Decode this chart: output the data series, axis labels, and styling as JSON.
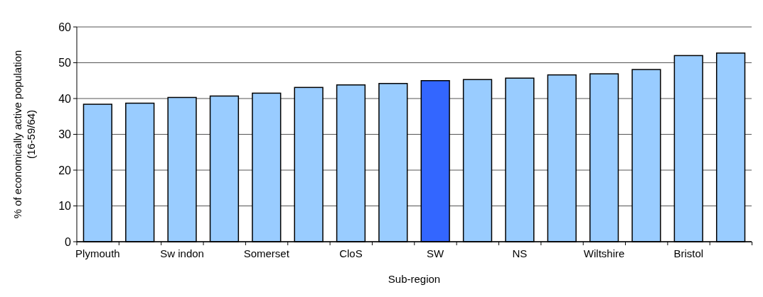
{
  "chart_data": {
    "type": "bar",
    "xlabel": "Sub-region",
    "ylabel": "% of economically active population (16-59/64)",
    "categories": [
      "Plymouth",
      null,
      "Sw indon",
      null,
      "Somerset",
      null,
      "CloS",
      null,
      "SW",
      null,
      "NS",
      null,
      "Wiltshire",
      null,
      "Bristol",
      null
    ],
    "values": [
      38.4,
      38.7,
      40.3,
      40.7,
      41.5,
      43.1,
      43.8,
      44.2,
      45.0,
      45.3,
      45.7,
      46.6,
      46.9,
      48.1,
      52.0,
      52.7
    ],
    "colors": [
      "#99ccff",
      "#99ccff",
      "#99ccff",
      "#99ccff",
      "#99ccff",
      "#99ccff",
      "#99ccff",
      "#99ccff",
      "#3366ff",
      "#99ccff",
      "#99ccff",
      "#99ccff",
      "#99ccff",
      "#99ccff",
      "#99ccff",
      "#99ccff"
    ],
    "ylim": [
      0,
      60
    ],
    "yticks": [
      0,
      10,
      20,
      30,
      40,
      50,
      60
    ],
    "grid": "y"
  }
}
